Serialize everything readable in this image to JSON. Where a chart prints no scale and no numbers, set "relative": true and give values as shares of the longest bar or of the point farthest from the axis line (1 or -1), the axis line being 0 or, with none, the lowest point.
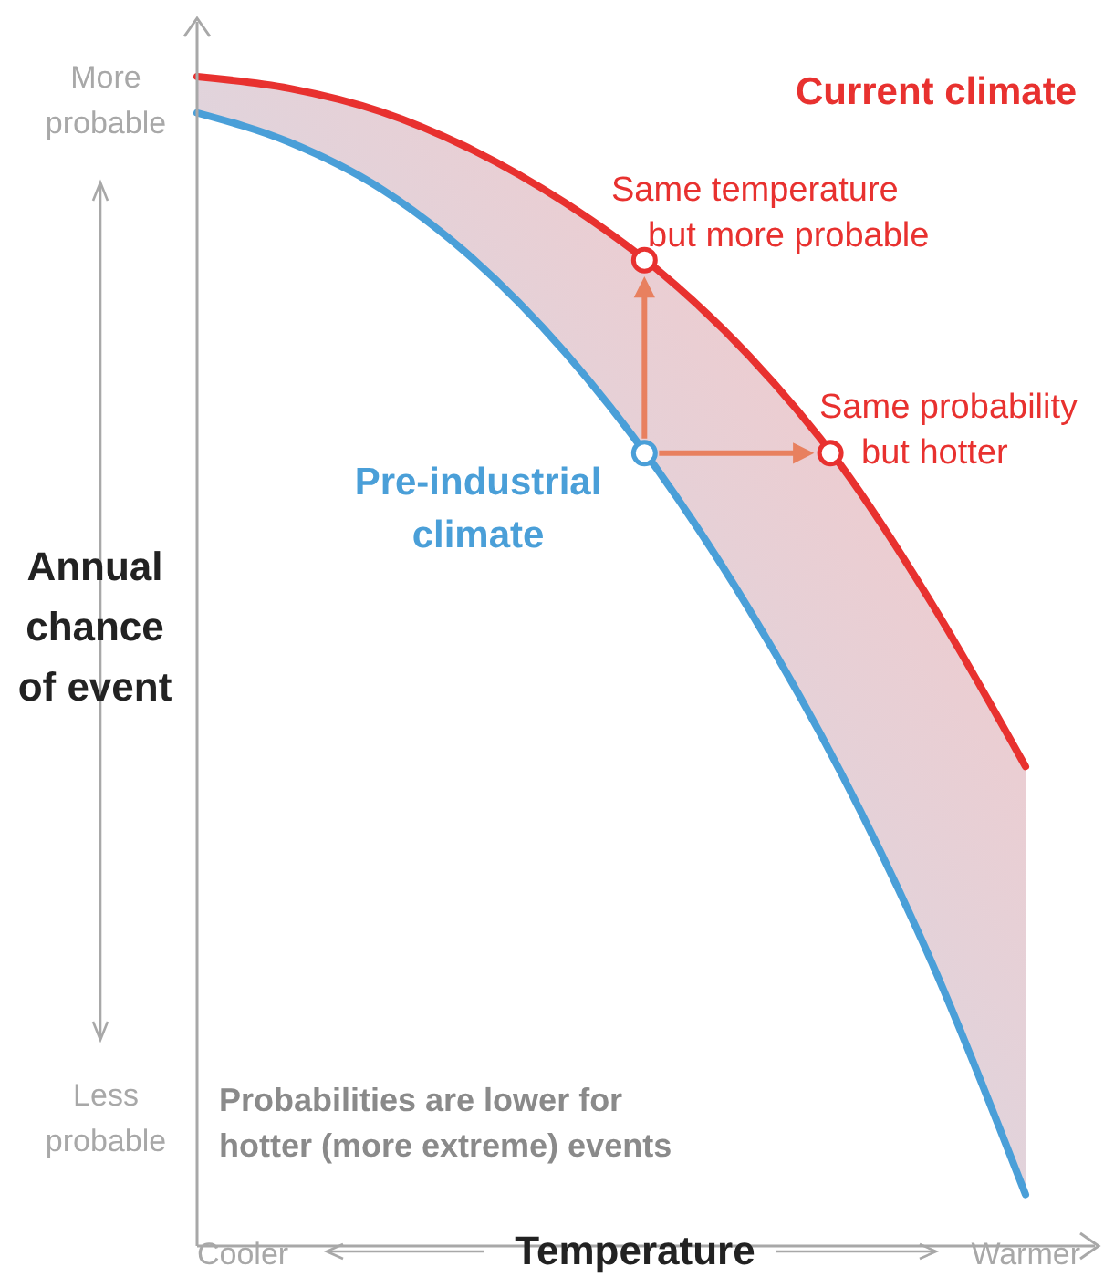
{
  "chart_data": {
    "type": "line",
    "relative": true,
    "xlabel": "Temperature",
    "ylabel": "Annual chance of event",
    "categories": [
      null,
      null,
      null,
      null,
      null,
      null,
      null,
      null,
      null,
      null
    ],
    "series": [
      {
        "name": "Current climate",
        "color": "#e8312f",
        "values": [
          1.0,
          0.99,
          0.97,
          0.937,
          0.892,
          0.835,
          0.761,
          0.667,
          0.547,
          0.41
        ],
        "lower": [
          0.969,
          0.944,
          0.904,
          0.844,
          0.764,
          0.664,
          0.544,
          0.404,
          0.239,
          0.044
        ],
        "upper": [
          1.0,
          0.99,
          0.97,
          0.937,
          0.892,
          0.835,
          0.761,
          0.667,
          0.547,
          0.41
        ]
      },
      {
        "name": "Pre-industrial climate",
        "color": "#4a9fd8",
        "values": [
          0.969,
          0.944,
          0.904,
          0.844,
          0.764,
          0.664,
          0.544,
          0.404,
          0.239,
          0.044
        ]
      }
    ],
    "annotations": [
      "More probable",
      "Less probable",
      "Cooler",
      "Warmer",
      "Same temperature but more probable",
      "Same probability but hotter",
      "Probabilities are lower for hotter (more extreme) events"
    ]
  }
}
